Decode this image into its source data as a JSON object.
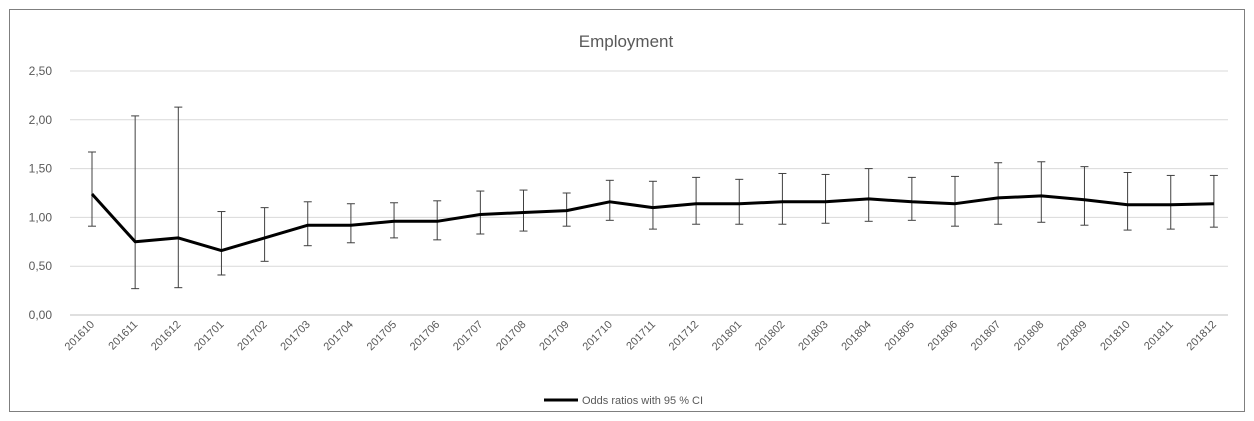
{
  "chart_data": {
    "type": "line",
    "title": "Employment",
    "xlabel": "",
    "ylabel": "",
    "ylim": [
      0,
      2.5
    ],
    "y_ticks": [
      "0,00",
      "0,50",
      "1,00",
      "1,50",
      "2,00",
      "2,50"
    ],
    "categories": [
      "201610",
      "201611",
      "201612",
      "201701",
      "201702",
      "201703",
      "201704",
      "201705",
      "201706",
      "201707",
      "201708",
      "201709",
      "201710",
      "201711",
      "201712",
      "201801",
      "201802",
      "201803",
      "201804",
      "201805",
      "201806",
      "201807",
      "201808",
      "201809",
      "201810",
      "201811",
      "201812"
    ],
    "series": [
      {
        "name": "Odds ratios with 95 % CI",
        "values": [
          1.24,
          0.75,
          0.79,
          0.66,
          0.79,
          0.92,
          0.92,
          0.96,
          0.96,
          1.03,
          1.05,
          1.07,
          1.16,
          1.1,
          1.14,
          1.14,
          1.16,
          1.16,
          1.19,
          1.16,
          1.14,
          1.2,
          1.22,
          1.18,
          1.13,
          1.13,
          1.14
        ],
        "ci_lower": [
          0.91,
          0.27,
          0.28,
          0.41,
          0.55,
          0.71,
          0.74,
          0.79,
          0.77,
          0.83,
          0.86,
          0.91,
          0.97,
          0.88,
          0.93,
          0.93,
          0.93,
          0.94,
          0.96,
          0.97,
          0.91,
          0.93,
          0.95,
          0.92,
          0.87,
          0.88,
          0.9
        ],
        "ci_upper": [
          1.67,
          2.04,
          2.13,
          1.06,
          1.1,
          1.16,
          1.14,
          1.15,
          1.17,
          1.27,
          1.28,
          1.25,
          1.38,
          1.37,
          1.41,
          1.39,
          1.45,
          1.44,
          1.5,
          1.41,
          1.42,
          1.56,
          1.57,
          1.52,
          1.46,
          1.43,
          1.43
        ]
      }
    ],
    "grid": "horizontal",
    "legend_position": "bottom",
    "colors": {
      "line": "#000000",
      "errorbar": "#404040",
      "grid": "#d9d9d9",
      "axis": "#bfbfbf",
      "text": "#595959"
    }
  }
}
